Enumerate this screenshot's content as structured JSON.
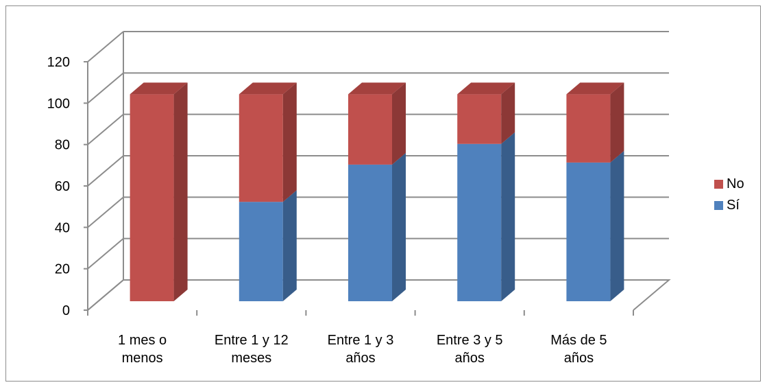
{
  "chart_data": {
    "type": "bar",
    "stacked": true,
    "three_d": true,
    "categories": [
      [
        "1 mes o",
        "menos"
      ],
      [
        "Entre 1 y 12",
        "meses"
      ],
      [
        "Entre 1 y 3",
        "años"
      ],
      [
        "Entre 3 y 5",
        "años"
      ],
      [
        "Más de 5",
        "años"
      ]
    ],
    "series": [
      {
        "name": "Sí",
        "color": "#4f81bd",
        "side_color": "#385d8a",
        "top_color": "#4f81bd",
        "values": [
          0,
          48,
          66,
          76,
          67
        ]
      },
      {
        "name": "No",
        "color": "#c0504d",
        "side_color": "#8c3836",
        "top_color": "#a4413e",
        "values": [
          100,
          52,
          34,
          24,
          33
        ]
      }
    ],
    "legend_order": [
      "No",
      "Sí"
    ],
    "yticks": [
      0,
      20,
      40,
      60,
      80,
      100,
      120
    ],
    "ylim": [
      0,
      120
    ],
    "grid": true,
    "legend_position": "right",
    "title": "",
    "xlabel": "",
    "ylabel": ""
  }
}
